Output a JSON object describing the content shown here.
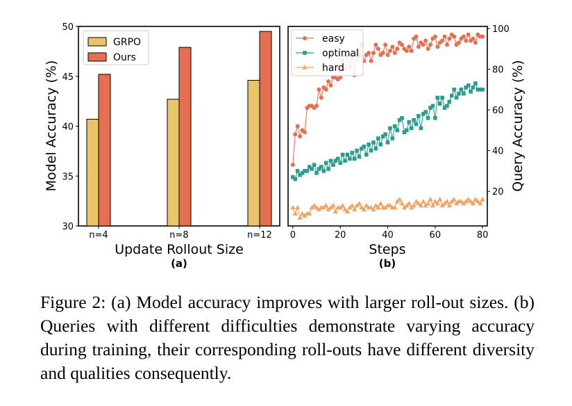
{
  "chart_data": [
    {
      "type": "bar",
      "panel_label": "(a)",
      "categories": [
        "n=4",
        "n=8",
        "n=12"
      ],
      "series": [
        {
          "name": "GRPO",
          "values": [
            40.7,
            42.7,
            44.6
          ],
          "color": "#E9C46A"
        },
        {
          "name": "Ours",
          "values": [
            45.2,
            47.9,
            49.5
          ],
          "color": "#E76F51"
        }
      ],
      "xlabel": "Update Rollout Size",
      "ylabel": "Model Accuracy (%)",
      "ylim": [
        30,
        50
      ],
      "yticks": [
        30,
        35,
        40,
        45,
        50
      ],
      "grid": false,
      "legend": "top-left"
    },
    {
      "type": "line",
      "panel_label": "(b)",
      "xlabel": "Steps",
      "ylabel": "Query Accuracy (%)",
      "y_axis_side": "right",
      "xlim": [
        -2,
        82
      ],
      "ylim": [
        3,
        101
      ],
      "xticks": [
        0,
        20,
        40,
        60,
        80
      ],
      "yticks": [
        20,
        40,
        60,
        80,
        100
      ],
      "grid": false,
      "legend": "top-left",
      "series": [
        {
          "name": "easy",
          "marker": "circle",
          "color": "#E76F51",
          "x": [
            0,
            1,
            2,
            3,
            4,
            5,
            6,
            7,
            8,
            9,
            10,
            11,
            12,
            13,
            14,
            15,
            16,
            17,
            18,
            19,
            20,
            21,
            22,
            23,
            24,
            25,
            26,
            27,
            28,
            29,
            30,
            31,
            32,
            33,
            34,
            35,
            36,
            37,
            38,
            39,
            40,
            41,
            42,
            43,
            44,
            45,
            46,
            47,
            48,
            49,
            50,
            51,
            52,
            53,
            54,
            55,
            56,
            57,
            58,
            59,
            60,
            61,
            62,
            63,
            64,
            65,
            66,
            67,
            68,
            69,
            70,
            71,
            72,
            73,
            74,
            75,
            76,
            77,
            78,
            79,
            80
          ],
          "y": [
            33,
            48,
            52,
            47,
            50,
            49,
            61,
            62,
            62,
            61,
            62,
            70,
            66,
            71,
            70,
            74,
            72,
            76,
            76,
            75,
            76,
            84,
            80,
            87,
            81,
            86,
            77,
            89,
            87,
            92,
            84,
            87,
            88,
            84,
            88,
            92,
            90,
            87,
            88,
            92,
            87,
            89,
            91,
            88,
            90,
            93,
            92,
            90,
            89,
            91,
            89,
            95,
            96,
            91,
            93,
            92,
            94,
            90,
            92,
            95,
            96,
            91,
            93,
            94,
            96,
            92,
            95,
            97,
            96,
            92,
            93,
            95,
            96,
            94,
            97,
            94,
            95,
            93,
            97,
            96,
            96
          ]
        },
        {
          "name": "optimal",
          "marker": "square",
          "color": "#2A9D8F",
          "x": [
            0,
            1,
            2,
            3,
            4,
            5,
            6,
            7,
            8,
            9,
            10,
            11,
            12,
            13,
            14,
            15,
            16,
            17,
            18,
            19,
            20,
            21,
            22,
            23,
            24,
            25,
            26,
            27,
            28,
            29,
            30,
            31,
            32,
            33,
            34,
            35,
            36,
            37,
            38,
            39,
            40,
            41,
            42,
            43,
            44,
            45,
            46,
            47,
            48,
            49,
            50,
            51,
            52,
            53,
            54,
            55,
            56,
            57,
            58,
            59,
            60,
            61,
            62,
            63,
            64,
            65,
            66,
            67,
            68,
            69,
            70,
            71,
            72,
            73,
            74,
            75,
            76,
            77,
            78,
            79,
            80
          ],
          "y": [
            27,
            26,
            30,
            28,
            29,
            30,
            30,
            32,
            31,
            33,
            29,
            31,
            32,
            30,
            34,
            31,
            35,
            33,
            35,
            36,
            34,
            38,
            35,
            38,
            36,
            39,
            36,
            40,
            37,
            41,
            42,
            38,
            43,
            40,
            44,
            41,
            46,
            43,
            47,
            48,
            44,
            51,
            46,
            52,
            50,
            55,
            56,
            49,
            50,
            54,
            51,
            55,
            53,
            57,
            51,
            58,
            59,
            56,
            61,
            62,
            56,
            66,
            63,
            66,
            61,
            62,
            64,
            67,
            70,
            66,
            68,
            70,
            68,
            71,
            72,
            69,
            71,
            73,
            70,
            70,
            70
          ]
        },
        {
          "name": "hard",
          "marker": "triangle",
          "color": "#F4A261",
          "x": [
            0,
            1,
            2,
            3,
            4,
            5,
            6,
            7,
            8,
            9,
            10,
            11,
            12,
            13,
            14,
            15,
            16,
            17,
            18,
            19,
            20,
            21,
            22,
            23,
            24,
            25,
            26,
            27,
            28,
            29,
            30,
            31,
            32,
            33,
            34,
            35,
            36,
            37,
            38,
            39,
            40,
            41,
            42,
            43,
            44,
            45,
            46,
            47,
            48,
            49,
            50,
            51,
            52,
            53,
            54,
            55,
            56,
            57,
            58,
            59,
            60,
            61,
            62,
            63,
            64,
            65,
            66,
            67,
            68,
            69,
            70,
            71,
            72,
            73,
            74,
            75,
            76,
            77,
            78,
            79,
            80
          ],
          "y": [
            12,
            9,
            12,
            7,
            9,
            8,
            9,
            9,
            12,
            13,
            12,
            11,
            12,
            12,
            13,
            11,
            12,
            13,
            10,
            12,
            12,
            13,
            11,
            10,
            12,
            13,
            11,
            13,
            14,
            12,
            11,
            13,
            12,
            12,
            11,
            13,
            12,
            14,
            12,
            12,
            13,
            13,
            12,
            12,
            15,
            16,
            14,
            12,
            13,
            14,
            12,
            13,
            15,
            14,
            13,
            15,
            13,
            14,
            16,
            13,
            15,
            14,
            16,
            13,
            14,
            15,
            13,
            15,
            16,
            14,
            15,
            15,
            14,
            15,
            16,
            15,
            14,
            16,
            15,
            14,
            16
          ]
        }
      ]
    }
  ],
  "caption": {
    "text": "Figure 2: (a) Model accuracy improves with larger roll-out sizes. (b) Queries with different difficulties demonstrate varying accuracy during training, their corresponding roll-outs have different diversity and qualities consequently."
  }
}
